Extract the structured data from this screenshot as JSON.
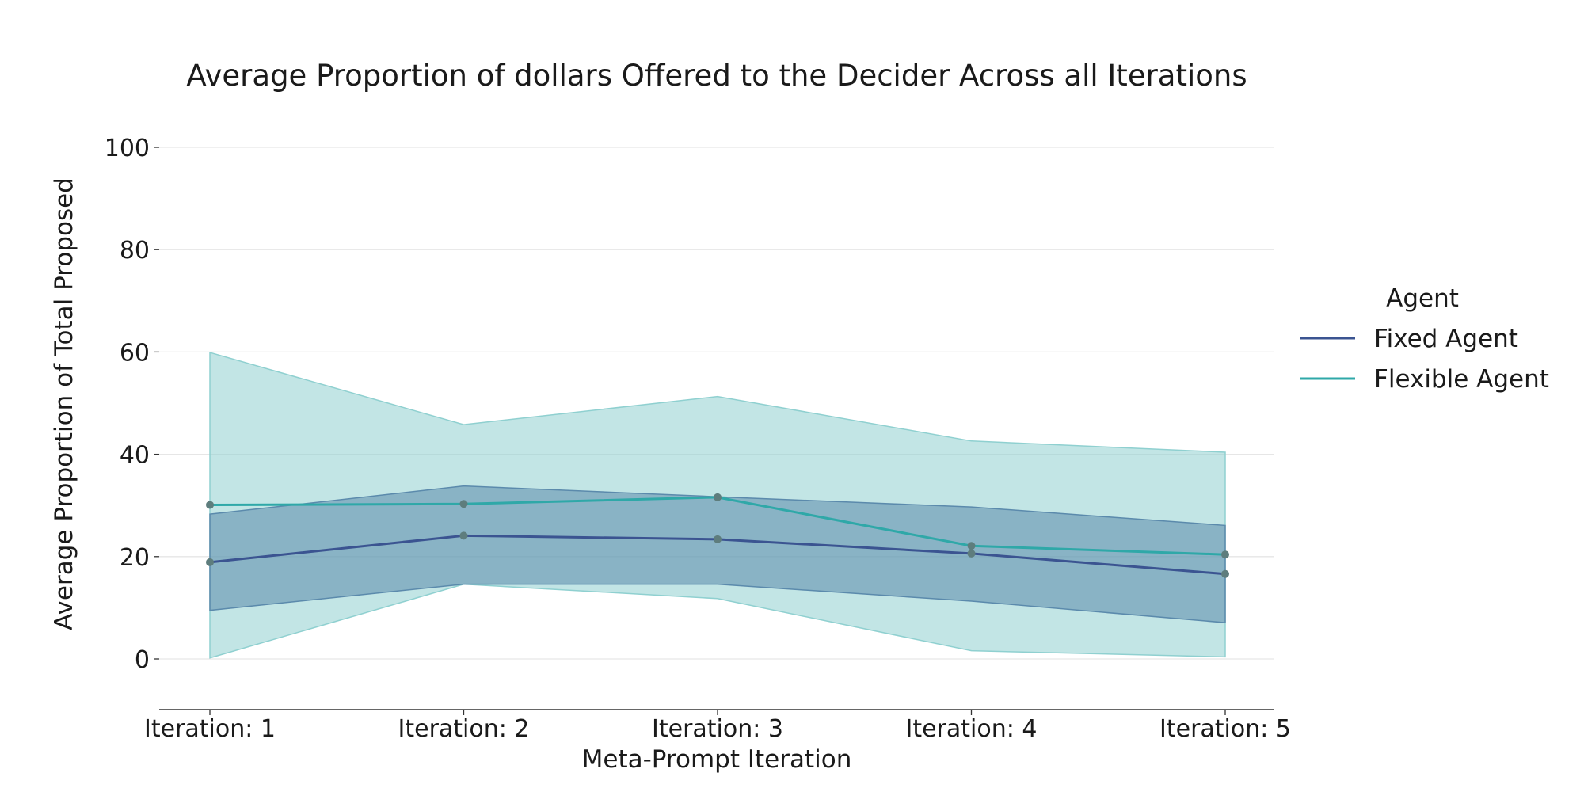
{
  "chart_data": {
    "type": "line",
    "title": "Average Proportion of dollars Offered to the Decider Across all Iterations",
    "xlabel": "Meta-Prompt Iteration",
    "ylabel": "Average Proportion of Total Proposed",
    "categories": [
      "Iteration: 1",
      "Iteration: 2",
      "Iteration: 3",
      "Iteration: 4",
      "Iteration: 5"
    ],
    "ylim": [
      -10,
      108
    ],
    "yticks": [
      0,
      20,
      40,
      60,
      80,
      100
    ],
    "grid": true,
    "legend": {
      "title": "Agent",
      "placement": "right"
    },
    "series": [
      {
        "name": "Fixed Agent",
        "color": "#3b5491",
        "band_color": "#5b8aac",
        "values": [
          18.9,
          24.1,
          23.4,
          20.6,
          16.6
        ],
        "lower": [
          9.5,
          14.6,
          14.6,
          11.3,
          7.1
        ],
        "upper": [
          28.3,
          33.8,
          31.7,
          29.7,
          26.1
        ]
      },
      {
        "name": "Flexible Agent",
        "color": "#2fa8a8",
        "band_color": "#8fd0d0",
        "values": [
          30.1,
          30.3,
          31.6,
          22.1,
          20.4
        ],
        "lower": [
          0.2,
          14.6,
          11.8,
          1.6,
          0.4
        ],
        "upper": [
          59.9,
          45.8,
          51.3,
          42.6,
          40.4
        ]
      }
    ]
  }
}
